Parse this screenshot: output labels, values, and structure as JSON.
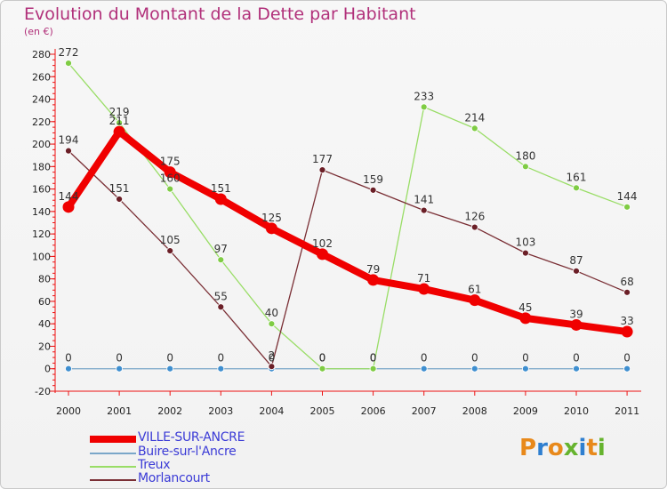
{
  "title": "Evolution du Montant de la Dette par Habitant",
  "subtitle": "(en €)",
  "logo": {
    "text": "Proxiti",
    "colors": [
      "#e8891b",
      "#2f7fd0",
      "#e8891b",
      "#66b32e",
      "#2f7fd0",
      "#e8891b",
      "#66b32e"
    ]
  },
  "chart_data": {
    "type": "line",
    "categories": [
      "2000",
      "2001",
      "2002",
      "2003",
      "2004",
      "2005",
      "2006",
      "2007",
      "2008",
      "2009",
      "2010",
      "2011"
    ],
    "ylim": [
      -20,
      280
    ],
    "yticks": [
      -20,
      0,
      20,
      40,
      60,
      80,
      100,
      120,
      140,
      160,
      180,
      200,
      220,
      240,
      260,
      280
    ],
    "grid": false,
    "legend_position": "bottom-left",
    "series": [
      {
        "name": "VILLE-SUR-ANCRE",
        "color": "#f00000",
        "values": [
          144,
          211,
          175,
          151,
          125,
          102,
          79,
          71,
          61,
          45,
          39,
          33
        ]
      },
      {
        "name": "Buire-sur-l'Ancre",
        "color": "#7aa7c9",
        "values": [
          0,
          0,
          0,
          0,
          0,
          0,
          0,
          0,
          0,
          0,
          0,
          0
        ]
      },
      {
        "name": "Treux",
        "color": "#99dd66",
        "values": [
          272,
          219,
          160,
          97,
          40,
          0,
          0,
          233,
          214,
          180,
          161,
          144
        ]
      },
      {
        "name": "Morlancourt",
        "color": "#7a2f35",
        "values": [
          194,
          151,
          105,
          55,
          2,
          177,
          159,
          141,
          126,
          103,
          87,
          68
        ]
      }
    ]
  }
}
